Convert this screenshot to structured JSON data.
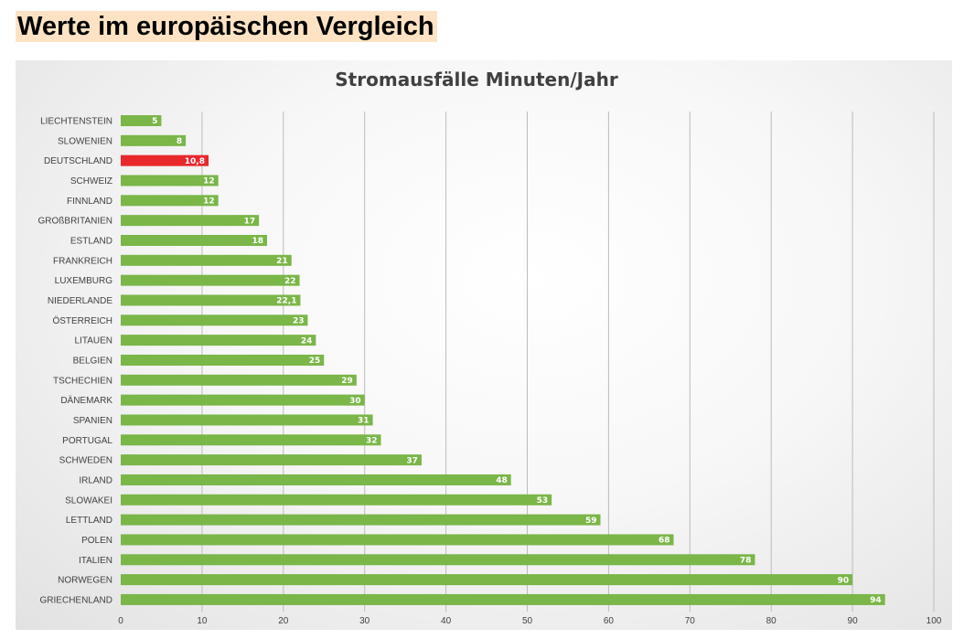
{
  "page": {
    "heading": "Werte im europäischen Vergleich"
  },
  "colors": {
    "bar_default": "#7ab648",
    "bar_highlight": "#e8282b",
    "heading_background": "#fde3c4"
  },
  "chart_data": {
    "type": "bar",
    "orientation": "horizontal",
    "title": "Stromausfälle Minuten/Jahr",
    "xlabel": "",
    "ylabel": "",
    "xlim": [
      0,
      100
    ],
    "xticks": [
      0,
      10,
      20,
      30,
      40,
      50,
      60,
      70,
      80,
      90,
      100
    ],
    "grid": "vertical",
    "legend": "none",
    "highlight_category": "DEUTSCHLAND",
    "categories": [
      "LIECHTENSTEIN",
      "SLOWENIEN",
      "DEUTSCHLAND",
      "SCHWEIZ",
      "FINNLAND",
      "GROßBRITANIEN",
      "ESTLAND",
      "FRANKREICH",
      "LUXEMBURG",
      "NIEDERLANDE",
      "ÖSTERREICH",
      "LITAUEN",
      "BELGIEN",
      "TSCHECHIEN",
      "DÄNEMARK",
      "SPANIEN",
      "PORTUGAL",
      "SCHWEDEN",
      "IRLAND",
      "SLOWAKEI",
      "LETTLAND",
      "POLEN",
      "ITALIEN",
      "NORWEGEN",
      "GRIECHENLAND"
    ],
    "values": [
      5,
      8,
      10.8,
      12,
      12,
      17,
      18,
      21,
      22,
      22.1,
      23,
      24,
      25,
      29,
      30,
      31,
      32,
      37,
      48,
      53,
      59,
      68,
      78,
      90,
      94
    ],
    "value_labels": [
      "5",
      "8",
      "10,8",
      "12",
      "12",
      "17",
      "18",
      "21",
      "22",
      "22,1",
      "23",
      "24",
      "25",
      "29",
      "30",
      "31",
      "32",
      "37",
      "48",
      "53",
      "59",
      "68",
      "78",
      "90",
      "94"
    ]
  }
}
